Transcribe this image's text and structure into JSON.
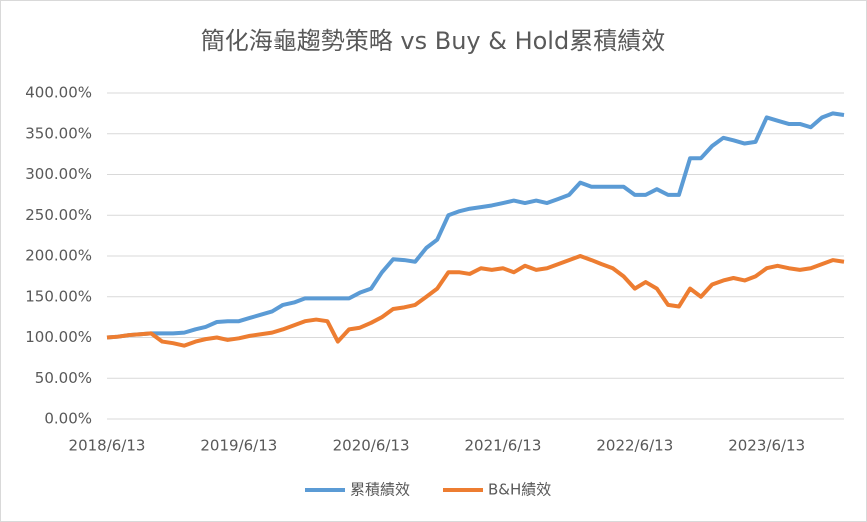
{
  "chart_data": {
    "type": "line",
    "title": "簡化海龜趨勢策略 vs Buy & Hold累積績效",
    "x": [
      "2018/6/13",
      "2018/7/13",
      "2018/8/13",
      "2018/9/13",
      "2018/10/13",
      "2018/11/13",
      "2018/12/13",
      "2019/1/13",
      "2019/2/13",
      "2019/3/13",
      "2019/4/13",
      "2019/5/13",
      "2019/6/13",
      "2019/7/13",
      "2019/8/13",
      "2019/9/13",
      "2019/10/13",
      "2019/11/13",
      "2019/12/13",
      "2020/1/13",
      "2020/2/13",
      "2020/3/13",
      "2020/4/13",
      "2020/5/13",
      "2020/6/13",
      "2020/7/13",
      "2020/8/13",
      "2020/9/13",
      "2020/10/13",
      "2020/11/13",
      "2020/12/13",
      "2021/1/13",
      "2021/2/13",
      "2021/3/13",
      "2021/4/13",
      "2021/5/13",
      "2021/6/13",
      "2021/7/13",
      "2021/8/13",
      "2021/9/13",
      "2021/10/13",
      "2021/11/13",
      "2021/12/13",
      "2022/1/13",
      "2022/2/13",
      "2022/3/13",
      "2022/4/13",
      "2022/5/13",
      "2022/6/13",
      "2022/7/13",
      "2022/8/13",
      "2022/9/13",
      "2022/10/13",
      "2022/11/13",
      "2022/12/13",
      "2023/1/13",
      "2023/2/13",
      "2023/3/13",
      "2023/4/13",
      "2023/5/13",
      "2023/6/13",
      "2023/7/13",
      "2023/8/13",
      "2023/9/13",
      "2023/10/13",
      "2023/11/13",
      "2023/12/13",
      "2024/1/13"
    ],
    "series": [
      {
        "name": "累積績效",
        "color": "#5b9bd5",
        "values": [
          100,
          101,
          103,
          104,
          105,
          105,
          105,
          106,
          110,
          113,
          119,
          120,
          120,
          124,
          128,
          132,
          140,
          143,
          148,
          148,
          148,
          148,
          148,
          155,
          160,
          180,
          196,
          195,
          193,
          210,
          220,
          250,
          255,
          258,
          260,
          262,
          265,
          268,
          265,
          268,
          265,
          270,
          275,
          290,
          285,
          285,
          285,
          285,
          275,
          275,
          282,
          275,
          275,
          320,
          320,
          335,
          345,
          342,
          338,
          340,
          370,
          366,
          362,
          362,
          358,
          370,
          375,
          373
        ]
      },
      {
        "name": "B&H績效",
        "color": "#ed7d31",
        "values": [
          100,
          101,
          103,
          104,
          105,
          95,
          93,
          90,
          95,
          98,
          100,
          97,
          99,
          102,
          104,
          106,
          110,
          115,
          120,
          122,
          120,
          95,
          110,
          112,
          118,
          125,
          135,
          137,
          140,
          150,
          160,
          180,
          180,
          178,
          185,
          183,
          185,
          180,
          188,
          183,
          185,
          190,
          195,
          200,
          195,
          190,
          185,
          175,
          160,
          168,
          160,
          140,
          138,
          160,
          150,
          165,
          170,
          173,
          170,
          175,
          185,
          188,
          185,
          183,
          185,
          190,
          195,
          193
        ]
      }
    ],
    "xlim": [
      "2018/6/13",
      "2024/1/13"
    ],
    "xticks": [
      "2018/6/13",
      "2019/6/13",
      "2020/6/13",
      "2021/6/13",
      "2022/6/13",
      "2023/6/13"
    ],
    "ylim": [
      0,
      400
    ],
    "yticks": [
      {
        "value": 0,
        "label": "0.00%"
      },
      {
        "value": 50,
        "label": "50.00%"
      },
      {
        "value": 100,
        "label": "100.00%"
      },
      {
        "value": 150,
        "label": "150.00%"
      },
      {
        "value": 200,
        "label": "200.00%"
      },
      {
        "value": 250,
        "label": "250.00%"
      },
      {
        "value": 300,
        "label": "300.00%"
      },
      {
        "value": 350,
        "label": "350.00%"
      },
      {
        "value": 400,
        "label": "400.00%"
      }
    ],
    "grid": true
  }
}
